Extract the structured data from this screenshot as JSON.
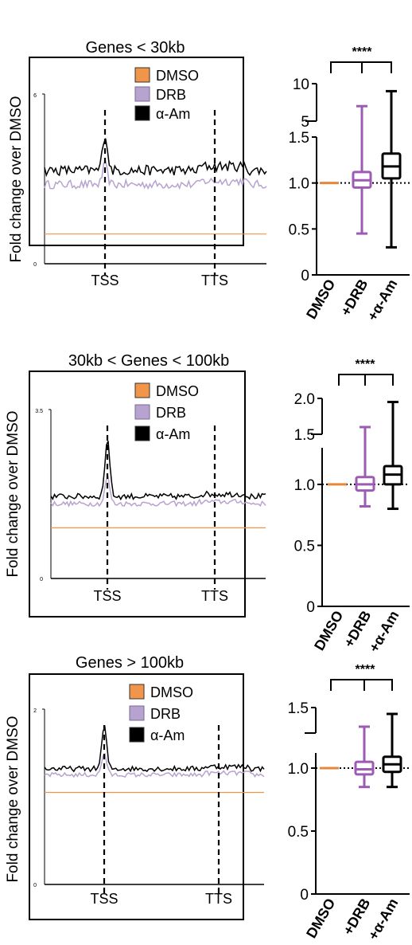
{
  "colors": {
    "dmso": "#F0954A",
    "drb": "#B7A3CF",
    "aam": "#000000",
    "drb_box": "#9D5BB3",
    "orange_box": "#E8873A"
  },
  "chart_data": [
    {
      "type": "line",
      "panel": "genes-lt-30kb",
      "title": "Genes < 30kb",
      "ylabel": "Fold change over DMSO",
      "ylim": [
        0,
        6
      ],
      "y_ticks": [
        "6",
        "0"
      ],
      "x_ticks": [
        "TSS",
        "TTS"
      ],
      "legend": [
        "DMSO",
        "DRB",
        "α-Am"
      ],
      "legend_position": "top-center",
      "series": [
        {
          "name": "DMSO",
          "flat": 1.05
        },
        {
          "name": "DRB",
          "base": 2.8,
          "peak": 3.5,
          "noise": 0.15
        },
        {
          "name": "α-Am",
          "base": 3.3,
          "peak": 4.6,
          "noise": 0.18
        }
      ]
    },
    {
      "type": "box",
      "panel": "genes-lt-30kb-box",
      "significance": "****",
      "categories": [
        "DMSO",
        "+DRB",
        "+α-Am"
      ],
      "y_ticks_lower": [
        "0",
        "0.5",
        "1.0",
        "1.5"
      ],
      "y_ticks_upper": [
        "5",
        "10"
      ],
      "ylim_lower": [
        0,
        1.5
      ],
      "ylim_upper": [
        5,
        10
      ],
      "reference": 1.0,
      "boxes": [
        {
          "name": "DMSO",
          "min": 1.0,
          "q1": 1.0,
          "median": 1.0,
          "q3": 1.0,
          "max": 1.0
        },
        {
          "name": "+DRB",
          "min": 0.45,
          "q1": 0.95,
          "median": 1.03,
          "q3": 1.12,
          "max": 7
        },
        {
          "name": "+α-Am",
          "min": 0.3,
          "q1": 1.05,
          "median": 1.18,
          "q3": 1.32,
          "max": 9
        }
      ]
    },
    {
      "type": "line",
      "panel": "genes-30-100kb",
      "title": "30kb < Genes < 100kb",
      "ylabel": "Fold change over DMSO",
      "ylim": [
        0,
        3.5
      ],
      "y_ticks": [
        "3.5",
        "0"
      ],
      "x_ticks": [
        "TSS",
        "TTS"
      ],
      "legend": [
        "DMSO",
        "DRB",
        "α-Am"
      ],
      "legend_position": "top-center",
      "series": [
        {
          "name": "DMSO",
          "flat": 1.05
        },
        {
          "name": "DRB",
          "base": 1.55,
          "peak": 2.1,
          "noise": 0.05
        },
        {
          "name": "α-Am",
          "base": 1.7,
          "peak": 2.9,
          "noise": 0.06
        }
      ]
    },
    {
      "type": "box",
      "panel": "genes-30-100kb-box",
      "significance": "****",
      "categories": [
        "DMSO",
        "+DRB",
        "+α-Am"
      ],
      "y_ticks_lower": [
        "0",
        "0.5",
        "1.0"
      ],
      "y_ticks_upper": [
        "1.5",
        "2.0"
      ],
      "ylim_lower": [
        0,
        1.3
      ],
      "ylim_upper": [
        1.5,
        2.0
      ],
      "reference": 1.0,
      "boxes": [
        {
          "name": "DMSO",
          "min": 1.0,
          "q1": 1.0,
          "median": 1.0,
          "q3": 1.0,
          "max": 1.0
        },
        {
          "name": "+DRB",
          "min": 0.82,
          "q1": 0.95,
          "median": 1.0,
          "q3": 1.06,
          "max": 1.6
        },
        {
          "name": "+α-Am",
          "min": 0.8,
          "q1": 1.0,
          "median": 1.08,
          "q3": 1.15,
          "max": 1.95
        }
      ]
    },
    {
      "type": "line",
      "panel": "genes-gt-100kb",
      "title": "Genes > 100kb",
      "ylabel": "Fold change over DMSO",
      "ylim": [
        0,
        2
      ],
      "y_ticks": [
        "2",
        "0"
      ],
      "x_ticks": [
        "TSS",
        "TTS"
      ],
      "legend": [
        "DMSO",
        "DRB",
        "α-Am"
      ],
      "legend_position": "top-center",
      "series": [
        {
          "name": "DMSO",
          "flat": 1.05
        },
        {
          "name": "DRB",
          "base": 1.25,
          "peak": 1.5,
          "noise": 0.025
        },
        {
          "name": "α-Am",
          "base": 1.32,
          "peak": 1.8,
          "noise": 0.03
        }
      ]
    },
    {
      "type": "box",
      "panel": "genes-gt-100kb-box",
      "significance": "****",
      "categories": [
        "DMSO",
        "+DRB",
        "+α-Am"
      ],
      "y_ticks_lower": [
        "0",
        "0.5",
        "1.0"
      ],
      "y_ticks_upper": [
        "1.5"
      ],
      "ylim_lower": [
        0,
        1.12
      ],
      "ylim_upper": [
        1.3,
        1.5
      ],
      "reference": 1.0,
      "boxes": [
        {
          "name": "DMSO",
          "min": 1.0,
          "q1": 1.0,
          "median": 1.0,
          "q3": 1.0,
          "max": 1.0
        },
        {
          "name": "+DRB",
          "min": 0.85,
          "q1": 0.95,
          "median": 0.99,
          "q3": 1.05,
          "max": 1.35
        },
        {
          "name": "+α-Am",
          "min": 0.85,
          "q1": 0.97,
          "median": 1.03,
          "q3": 1.09,
          "max": 1.45
        }
      ]
    }
  ]
}
